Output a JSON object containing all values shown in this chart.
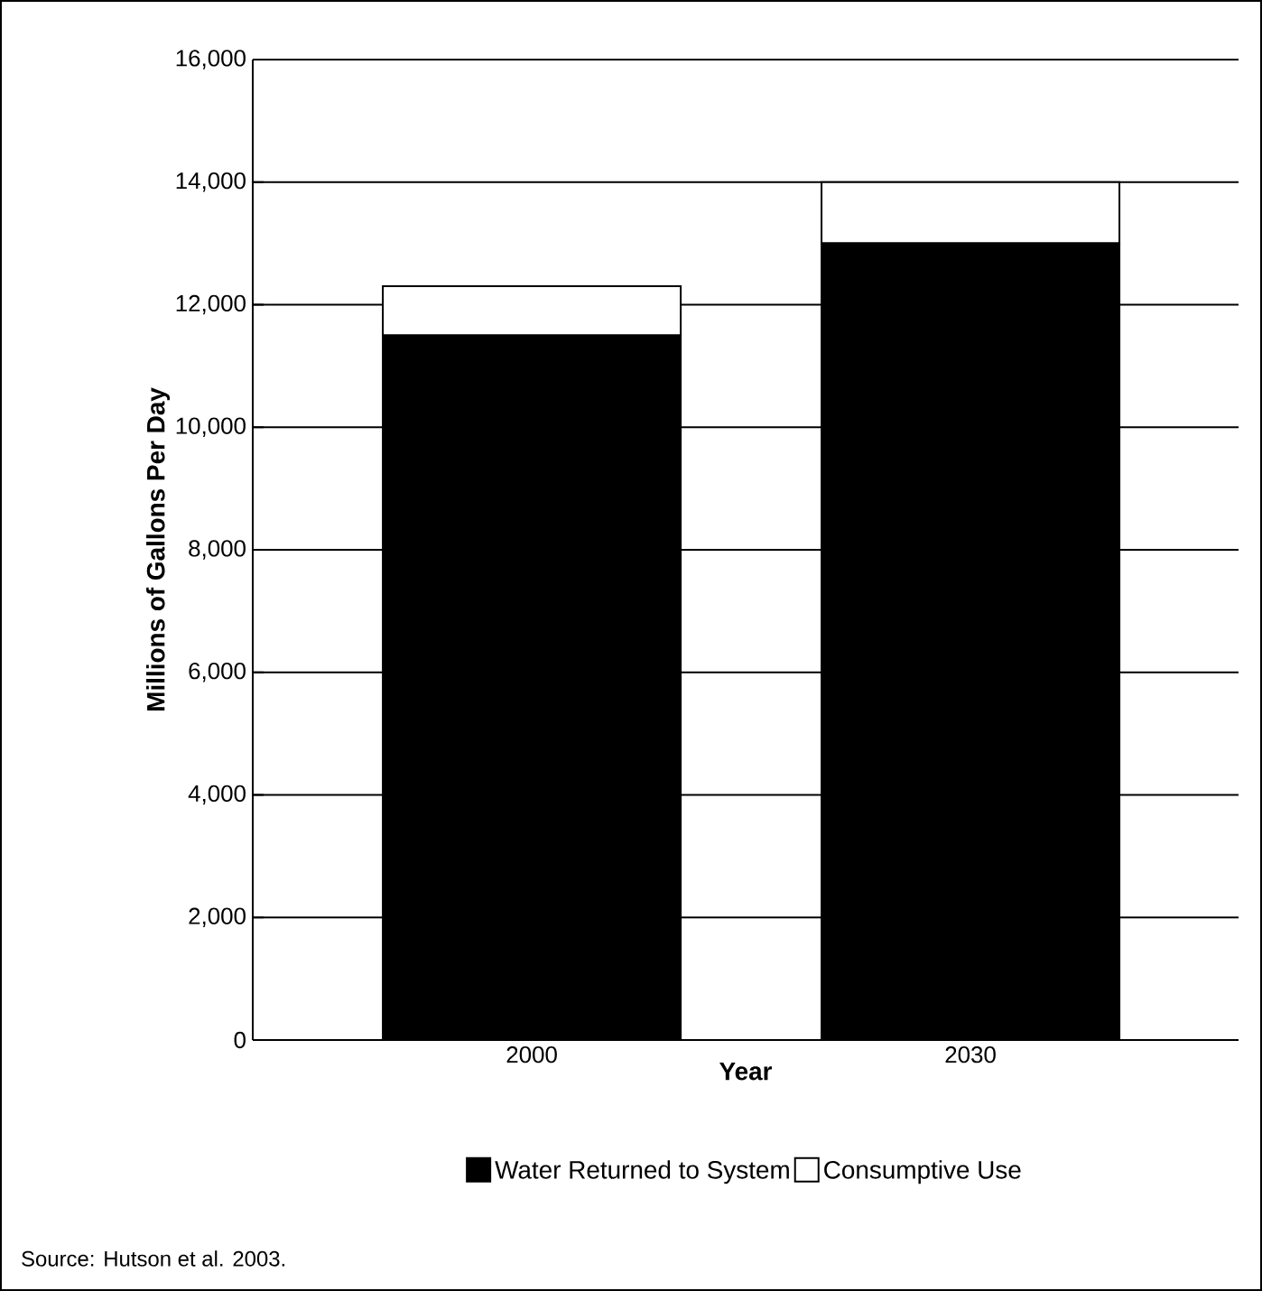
{
  "chart_data": {
    "type": "bar",
    "stacked": true,
    "categories": [
      "2000",
      "2030"
    ],
    "series": [
      {
        "name": "Water Returned to System",
        "color": "#000000",
        "values": [
          11500,
          13000
        ]
      },
      {
        "name": "Consumptive Use",
        "color": "#ffffff",
        "values": [
          800,
          1000
        ]
      }
    ],
    "xlabel": "Year",
    "ylabel": "Millions of Gallons Per Day",
    "ylim": [
      0,
      16000
    ],
    "yticks": [
      0,
      {
        "value": 2000,
        "label": "2,000"
      },
      {
        "value": 4000,
        "label": "4,000"
      },
      {
        "value": 6000,
        "label": "6,000"
      },
      {
        "value": 8000,
        "label": "8,000"
      },
      {
        "value": 10000,
        "label": "10,000"
      },
      {
        "value": 12000,
        "label": "12,000"
      },
      {
        "value": 14000,
        "label": "14,000"
      },
      {
        "value": 16000,
        "label": "16,000"
      }
    ],
    "grid": "y",
    "legend": "bottom",
    "annotations": [
      "Source:  Hutson et al.  2003."
    ]
  }
}
